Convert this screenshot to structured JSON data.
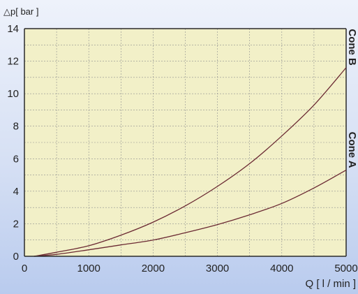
{
  "chart_data": {
    "type": "line",
    "ylabel": "△p[ bar ]",
    "xlabel": "Q [ l / min ]",
    "xlim": [
      0,
      5000
    ],
    "ylim": [
      0,
      14
    ],
    "x_ticks": [
      0,
      1000,
      2000,
      3000,
      4000,
      5000
    ],
    "y_ticks": [
      0,
      2,
      4,
      6,
      8,
      10,
      12,
      14
    ],
    "grid": true,
    "series": [
      {
        "name": "Cone B",
        "color": "#6b2a33",
        "x": [
          150,
          500,
          1000,
          1500,
          2000,
          2500,
          3000,
          3500,
          4000,
          4500,
          5000
        ],
        "y": [
          0.0,
          0.25,
          0.65,
          1.3,
          2.1,
          3.1,
          4.3,
          5.7,
          7.4,
          9.3,
          11.6
        ]
      },
      {
        "name": "Cone A",
        "color": "#6b2a33",
        "x": [
          150,
          500,
          1000,
          1500,
          2000,
          2500,
          3000,
          3500,
          4000,
          4500,
          5000
        ],
        "y": [
          0.0,
          0.12,
          0.4,
          0.7,
          1.0,
          1.45,
          1.95,
          2.55,
          3.25,
          4.2,
          5.3
        ]
      }
    ]
  }
}
